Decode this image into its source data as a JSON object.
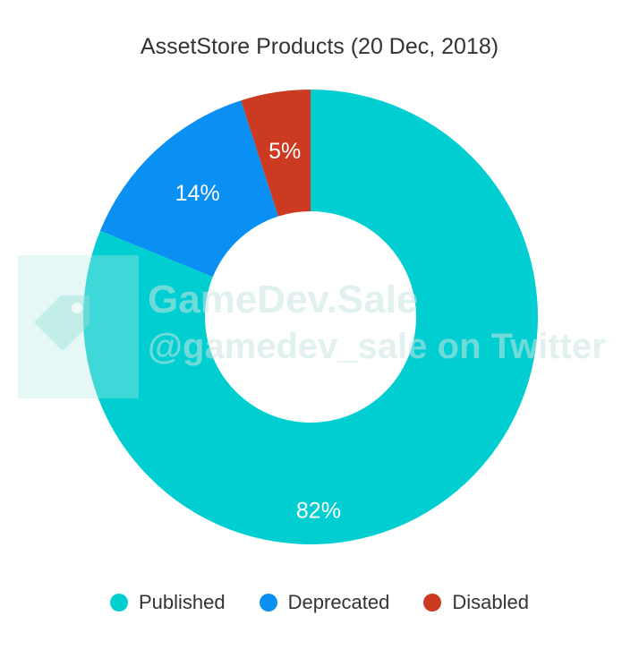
{
  "chart_data": {
    "type": "pie",
    "variant": "donut",
    "title": "AssetStore Products (20 Dec, 2018)",
    "categories": [
      "Published",
      "Deprecated",
      "Disabled"
    ],
    "values": [
      82,
      14,
      5
    ],
    "labels": [
      "82%",
      "14%",
      "5%"
    ],
    "colors": [
      "#00CED1",
      "#0A8FF2",
      "#CD3A22"
    ],
    "legend_position": "bottom"
  },
  "watermark": {
    "line1": "GameDev.Sale",
    "line2": "@gamedev_sale on Twitter"
  }
}
